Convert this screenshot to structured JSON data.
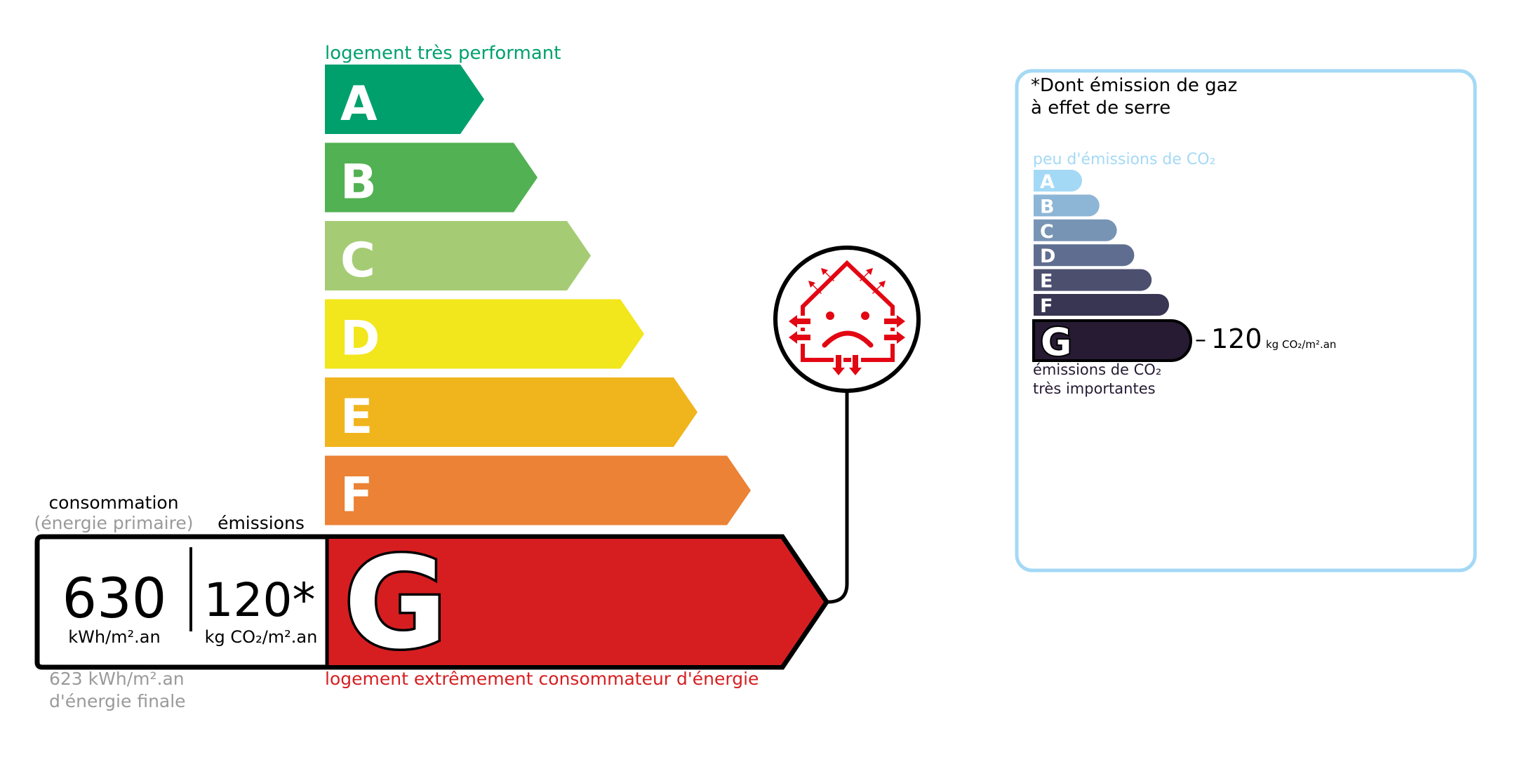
{
  "energy": {
    "top_label": "logement très performant",
    "bottom_label": "logement extrêmement consommateur d'énergie",
    "classes": [
      {
        "letter": "A",
        "color": "#00a06d"
      },
      {
        "letter": "B",
        "color": "#52b153"
      },
      {
        "letter": "C",
        "color": "#a5cc74"
      },
      {
        "letter": "D",
        "color": "#f2e61c"
      },
      {
        "letter": "E",
        "color": "#f0b41c"
      },
      {
        "letter": "F",
        "color": "#eb8235"
      },
      {
        "letter": "G",
        "color": "#d61e21"
      }
    ],
    "current_class": "G",
    "consumption_header": "consommation",
    "consumption_subheader": "(énergie primaire)",
    "emissions_header": "émissions",
    "consumption_value": "630",
    "consumption_unit": "kWh/m².an",
    "emissions_value": "120*",
    "emissions_unit": "kg CO₂/m².an",
    "final_energy_value": "623 kWh/m².an",
    "final_energy_label": "d'énergie finale",
    "badge_icon": "sad-house-heat-loss-icon"
  },
  "ghg": {
    "title_line1": "*Dont émission de gaz",
    "title_line2": "à effet de serre",
    "top_label": "peu d'émissions de CO₂",
    "bottom_label_line1": "émissions de CO₂",
    "bottom_label_line2": "très importantes",
    "classes": [
      {
        "letter": "A",
        "color": "#a4d9f6"
      },
      {
        "letter": "B",
        "color": "#8db5d6"
      },
      {
        "letter": "C",
        "color": "#7794b5"
      },
      {
        "letter": "D",
        "color": "#5f6e90"
      },
      {
        "letter": "E",
        "color": "#4c4f6e"
      },
      {
        "letter": "F",
        "color": "#393653"
      },
      {
        "letter": "G",
        "color": "#261b33"
      }
    ],
    "current_class": "G",
    "value": "120",
    "unit": "kg CO₂/m².an",
    "border_color": "#a4d9f6"
  }
}
